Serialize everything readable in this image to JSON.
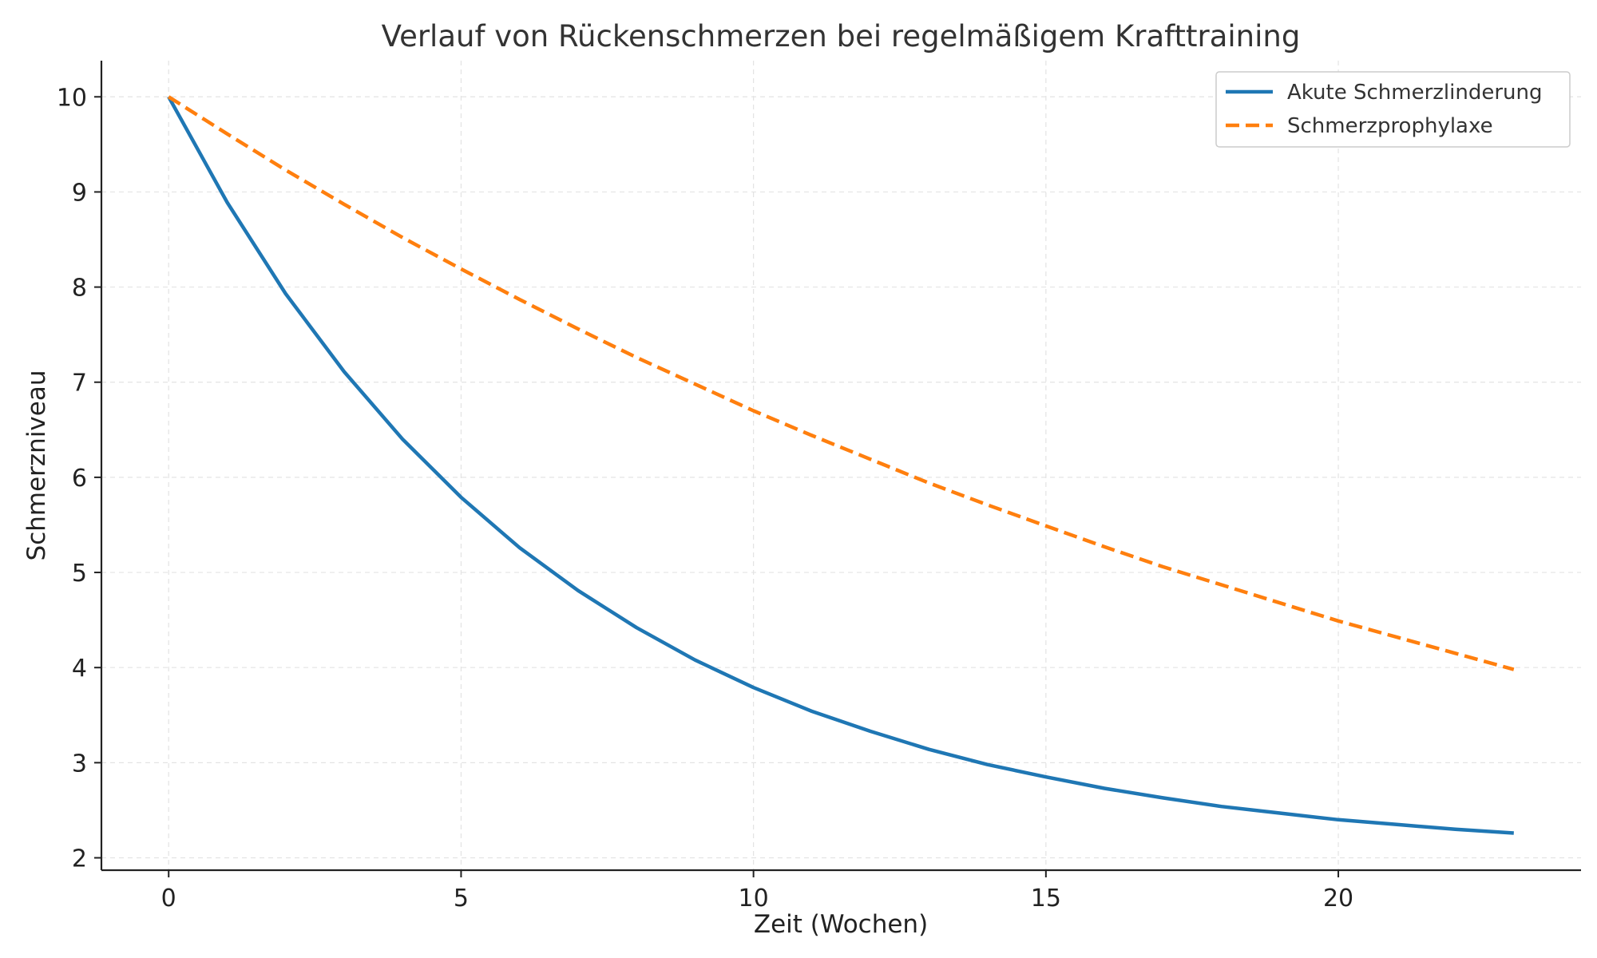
{
  "chart_data": {
    "type": "line",
    "title": "Verlauf von Rückenschmerzen bei regelmäßigem Krafttraining",
    "xlabel": "Zeit (Wochen)",
    "ylabel": "Schmerzniveau",
    "xlim": [
      -1.15,
      24.15
    ],
    "ylim": [
      1.87,
      10.38
    ],
    "xticks": [
      0,
      5,
      10,
      15,
      20
    ],
    "yticks": [
      2,
      3,
      4,
      5,
      6,
      7,
      8,
      9,
      10
    ],
    "grid": true,
    "legend_position": "top-right",
    "x": [
      0,
      1,
      2,
      3,
      4,
      5,
      6,
      7,
      8,
      9,
      10,
      11,
      12,
      13,
      14,
      15,
      16,
      17,
      18,
      19,
      20,
      21,
      22,
      23
    ],
    "series": [
      {
        "name": "Akute Schmerzlinderung",
        "color": "#1f77b4",
        "style": "solid",
        "values": [
          10.0,
          8.89,
          7.93,
          7.11,
          6.4,
          5.79,
          5.26,
          4.81,
          4.42,
          4.08,
          3.79,
          3.54,
          3.33,
          3.14,
          2.98,
          2.85,
          2.73,
          2.63,
          2.54,
          2.47,
          2.4,
          2.35,
          2.3,
          2.26
        ]
      },
      {
        "name": "Schmerzprophylaxe",
        "color": "#ff7f0e",
        "style": "dashed",
        "values": [
          10.0,
          9.61,
          9.23,
          8.87,
          8.52,
          8.19,
          7.87,
          7.56,
          7.26,
          6.98,
          6.7,
          6.44,
          6.19,
          5.94,
          5.71,
          5.49,
          5.27,
          5.06,
          4.87,
          4.68,
          4.49,
          4.32,
          4.15,
          3.98
        ]
      }
    ]
  }
}
